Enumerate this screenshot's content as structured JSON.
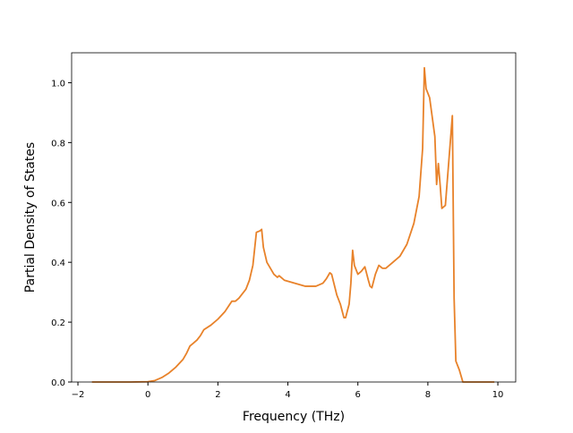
{
  "chart_data": {
    "type": "line",
    "xlabel": "Frequency (THz)",
    "ylabel": "Partial Density of States",
    "color": "#e8822a",
    "xlim": [
      -2.18,
      10.51
    ],
    "ylim": [
      0,
      1.1
    ],
    "xticks": [
      {
        "value": -2,
        "label": "−2"
      },
      0,
      2,
      4,
      6,
      8,
      10
    ],
    "yticks": [
      {
        "value": 0,
        "label": "0.0"
      },
      {
        "value": 0.2,
        "label": "0.2"
      },
      {
        "value": 0.4,
        "label": "0.4"
      },
      {
        "value": 0.6,
        "label": "0.6"
      },
      {
        "value": 0.8,
        "label": "0.8"
      },
      {
        "value": 1,
        "label": "1.0"
      }
    ],
    "x": [
      -1.6,
      -0.5,
      0,
      0.2,
      0.4,
      0.6,
      0.8,
      1.0,
      1.1,
      1.2,
      1.3,
      1.4,
      1.5,
      1.6,
      1.8,
      2.0,
      2.2,
      2.4,
      2.5,
      2.6,
      2.8,
      2.9,
      3.0,
      3.1,
      3.2,
      3.25,
      3.3,
      3.4,
      3.6,
      3.7,
      3.75,
      3.9,
      4.2,
      4.5,
      4.8,
      5.0,
      5.1,
      5.2,
      5.25,
      5.4,
      5.5,
      5.6,
      5.65,
      5.75,
      5.8,
      5.85,
      5.9,
      6.0,
      6.1,
      6.2,
      6.3,
      6.35,
      6.4,
      6.5,
      6.6,
      6.7,
      6.8,
      7.0,
      7.2,
      7.4,
      7.6,
      7.75,
      7.85,
      7.9,
      7.95,
      8.05,
      8.2,
      8.25,
      8.3,
      8.35,
      8.4,
      8.5,
      8.6,
      8.7,
      8.75,
      8.8,
      8.9,
      9.0,
      9.9
    ],
    "values": [
      0,
      0,
      0.001,
      0.005,
      0.015,
      0.03,
      0.05,
      0.075,
      0.095,
      0.12,
      0.13,
      0.14,
      0.155,
      0.175,
      0.19,
      0.21,
      0.235,
      0.27,
      0.27,
      0.28,
      0.31,
      0.34,
      0.39,
      0.5,
      0.505,
      0.51,
      0.45,
      0.4,
      0.36,
      0.35,
      0.355,
      0.34,
      0.33,
      0.32,
      0.32,
      0.33,
      0.345,
      0.365,
      0.36,
      0.29,
      0.26,
      0.215,
      0.215,
      0.26,
      0.33,
      0.44,
      0.39,
      0.36,
      0.37,
      0.385,
      0.34,
      0.32,
      0.315,
      0.36,
      0.39,
      0.38,
      0.38,
      0.4,
      0.42,
      0.46,
      0.53,
      0.62,
      0.78,
      1.05,
      0.98,
      0.95,
      0.82,
      0.66,
      0.73,
      0.66,
      0.58,
      0.59,
      0.74,
      0.89,
      0.28,
      0.07,
      0.04,
      0,
      0
    ]
  }
}
